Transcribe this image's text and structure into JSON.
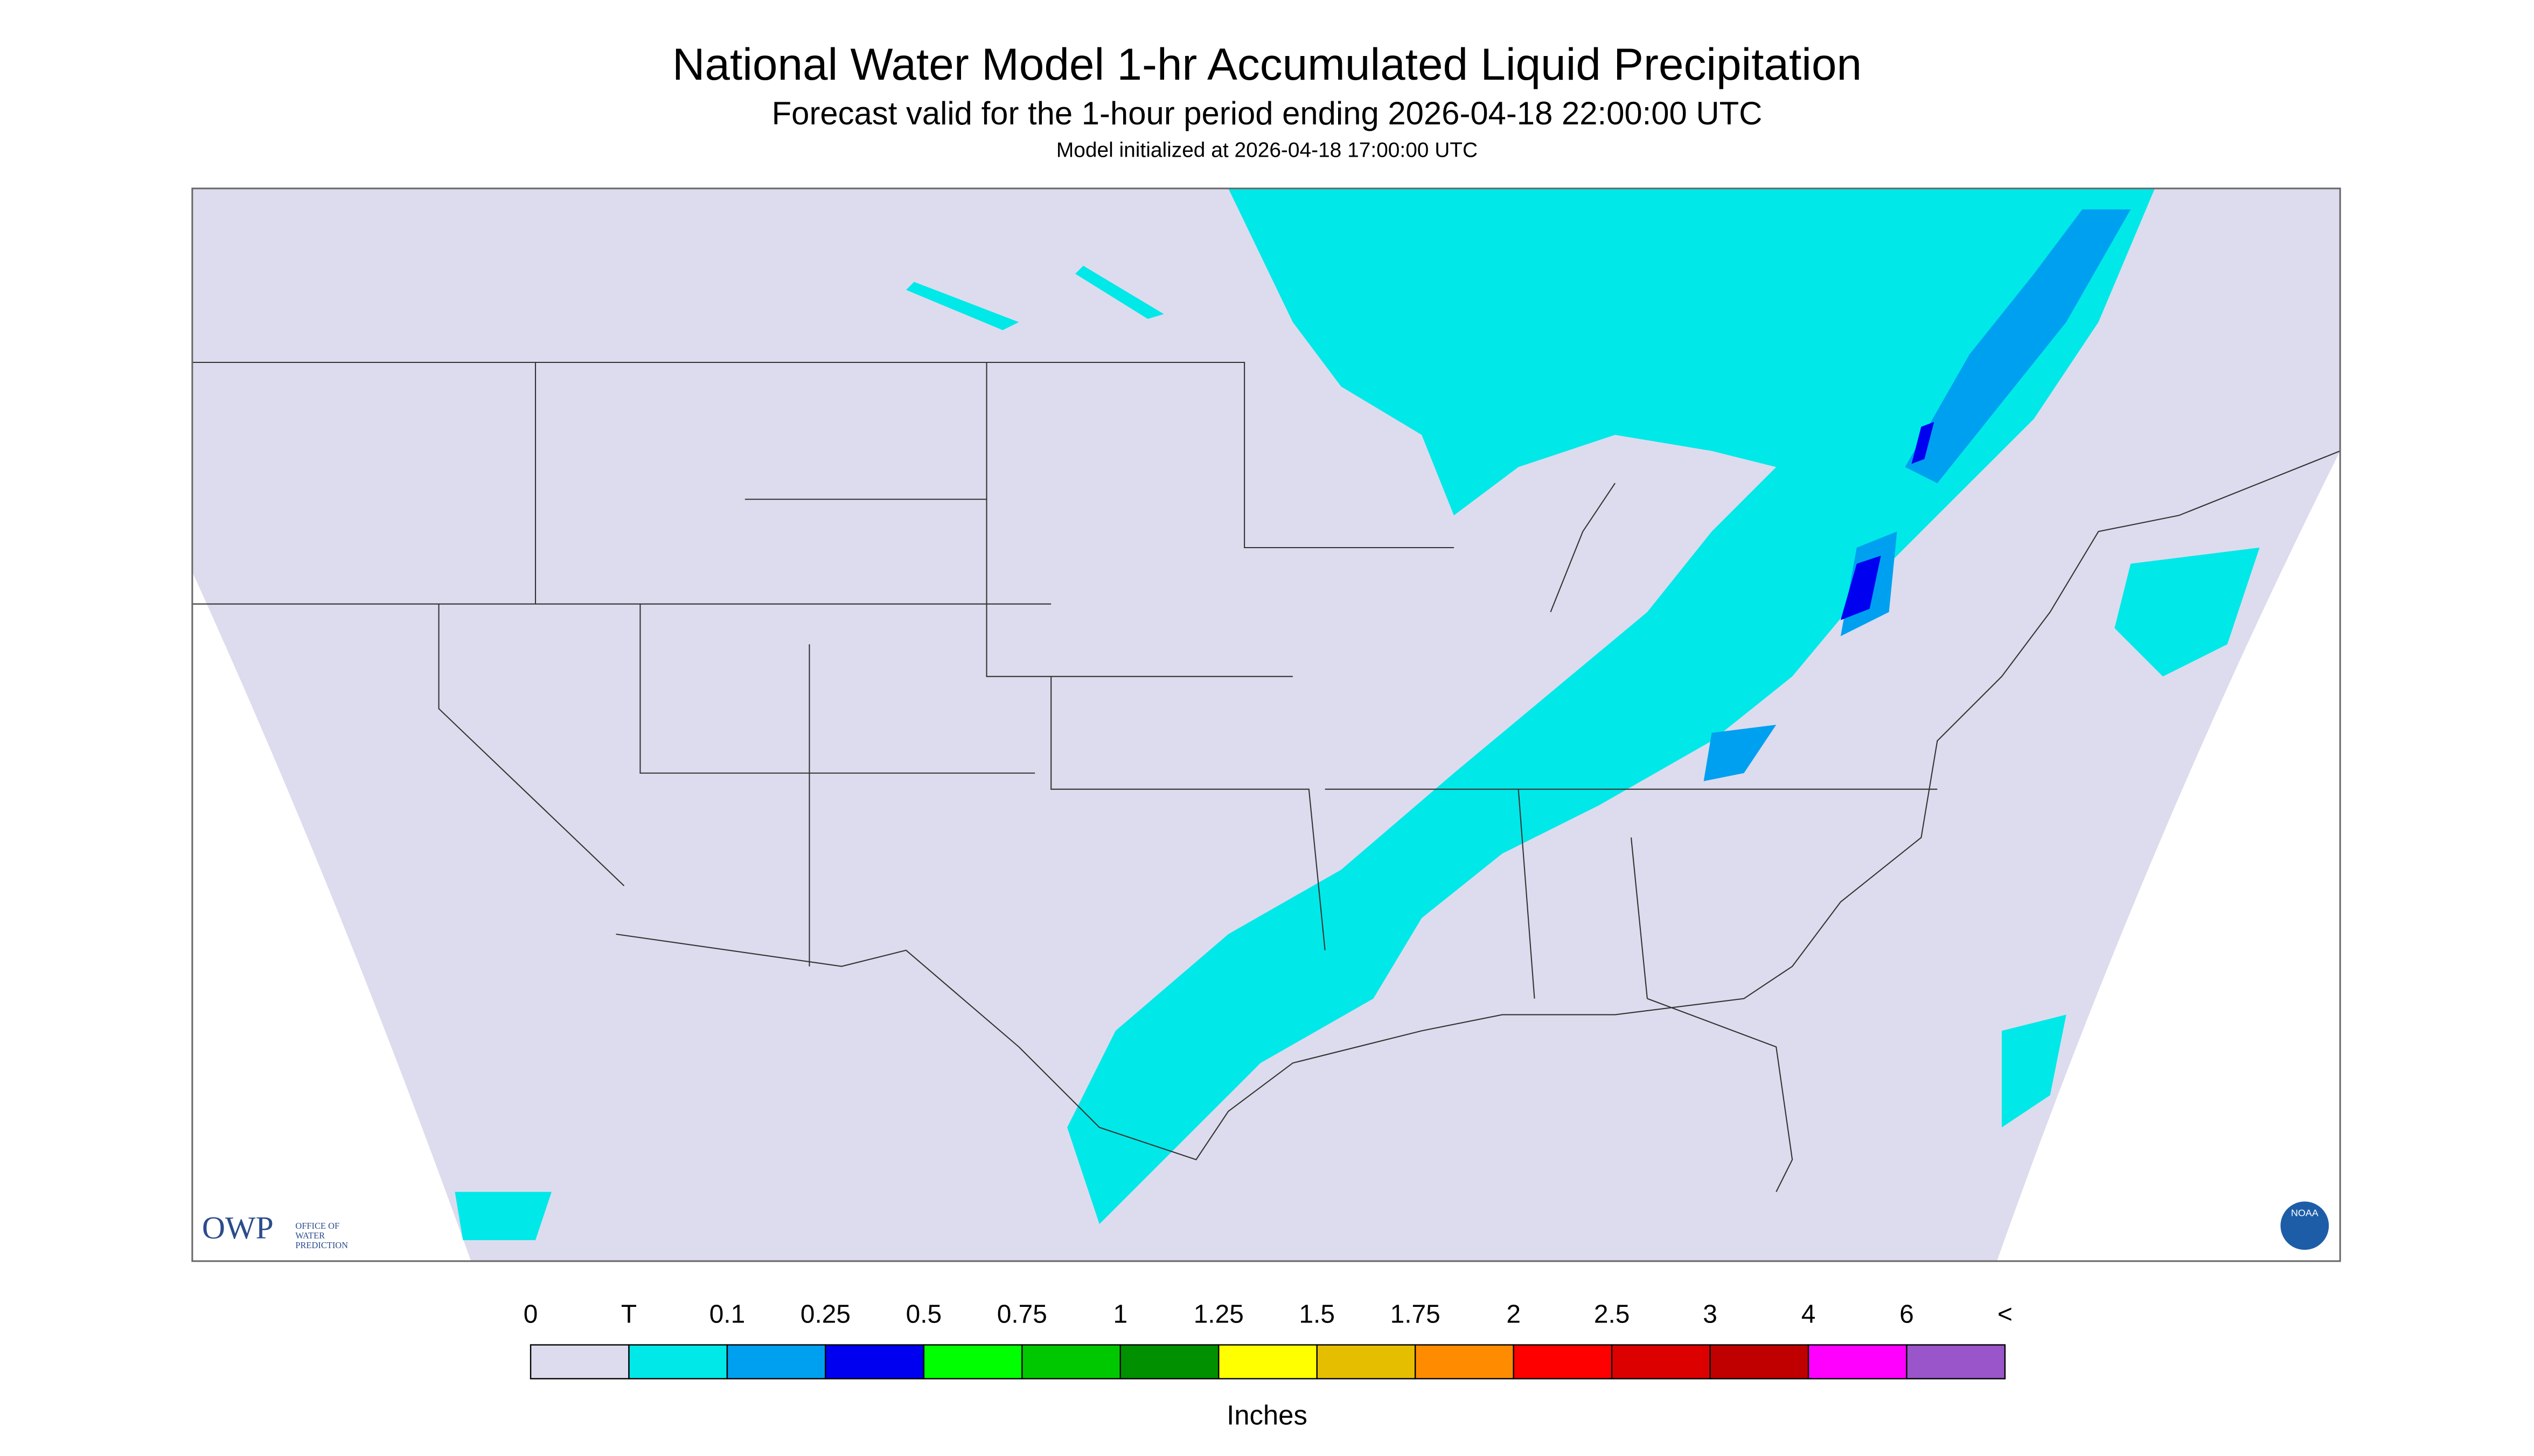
{
  "header": {
    "title": "National Water Model 1-hr Accumulated Liquid Precipitation",
    "subtitle": "Forecast valid for the 1-hour period ending 2026-04-18 22:00:00 UTC",
    "initialized": "Model initialized at 2026-04-18 17:00:00 UTC"
  },
  "logos": {
    "owp": "OWP",
    "owp_line1": "OFFICE OF",
    "owp_line2": "WATER",
    "owp_line3": "PREDICTION",
    "noaa": "NOAA"
  },
  "legend": {
    "labels": [
      "0",
      "T",
      "0.1",
      "0.25",
      "0.5",
      "0.75",
      "1",
      "1.25",
      "1.5",
      "1.75",
      "2",
      "2.5",
      "3",
      "4",
      "6",
      "<"
    ],
    "colors": [
      "#dcdcee",
      "#00e8e8",
      "#00a0f0",
      "#0000f0",
      "#00ff00",
      "#00c800",
      "#009000",
      "#ffff00",
      "#e6be00",
      "#ff8c00",
      "#ff0000",
      "#dc0000",
      "#c00000",
      "#ff00ff",
      "#9955c9"
    ],
    "unit": "Inches"
  }
}
